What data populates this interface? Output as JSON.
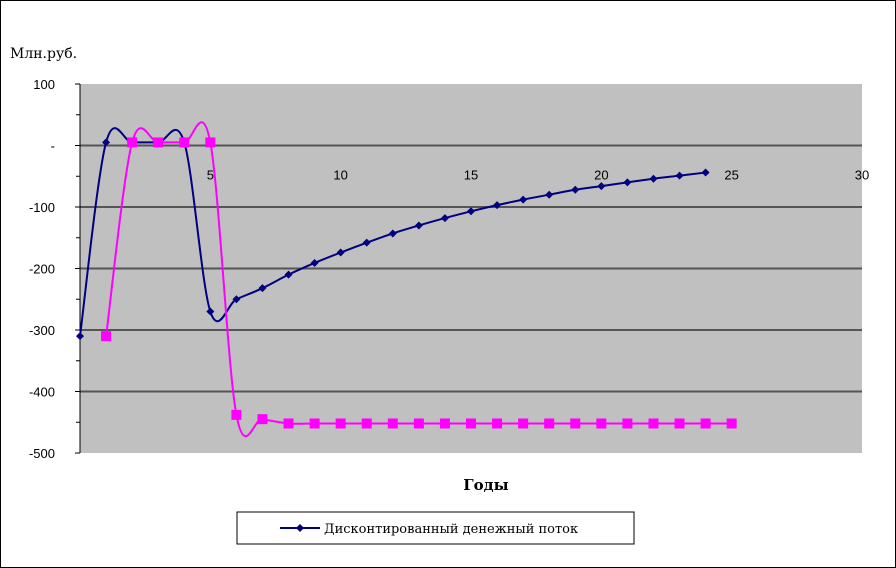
{
  "chart_data": {
    "type": "line",
    "title": "",
    "ylabel": "Млн.руб.",
    "xlabel": "Годы",
    "xlim": [
      0,
      30
    ],
    "ylim": [
      -500,
      100
    ],
    "x_ticks": [
      5,
      10,
      15,
      20,
      25,
      30
    ],
    "y_ticks": [
      100,
      0,
      -100,
      -200,
      -300,
      -400,
      -500
    ],
    "y_tick_labels": [
      "100",
      "-",
      "-100",
      "-200",
      "-300",
      "-400",
      "-500"
    ],
    "grid": true,
    "plot_background": "#c0c0c0",
    "legend_position": "bottom",
    "series": [
      {
        "name": "Дисконтированный денежный поток",
        "color": "#000080",
        "marker": "diamond",
        "x": [
          0,
          1,
          2,
          3,
          4,
          5,
          6,
          7,
          8,
          9,
          10,
          11,
          12,
          13,
          14,
          15,
          16,
          17,
          18,
          19,
          20,
          21,
          22,
          23,
          24
        ],
        "values": [
          -310,
          5,
          5,
          5,
          5,
          -270,
          -250,
          -232,
          -210,
          -191,
          -174,
          -158,
          -143,
          -130,
          -118,
          -107,
          -97,
          -88,
          -80,
          -72,
          -66,
          -60,
          -54,
          -49,
          -44
        ]
      },
      {
        "color": "#ff00ff",
        "marker": "square",
        "x": [
          1,
          2,
          3,
          4,
          5,
          6,
          7,
          8,
          9,
          10,
          11,
          12,
          13,
          14,
          15,
          16,
          17,
          18,
          19,
          20,
          21,
          22,
          23,
          24,
          25
        ],
        "values": [
          -310,
          5,
          5,
          5,
          5,
          -438,
          -445,
          -452,
          -452,
          -452,
          -452,
          -452,
          -452,
          -452,
          -452,
          -452,
          -452,
          -452,
          -452,
          -452,
          -452,
          -452,
          -452,
          -452,
          -452
        ]
      }
    ]
  }
}
